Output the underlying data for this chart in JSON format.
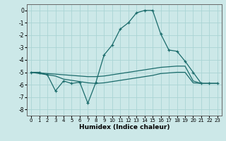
{
  "xlabel": "Humidex (Indice chaleur)",
  "bg_color": "#cce8e8",
  "grid_color": "#aad4d4",
  "line_color": "#1a6b6b",
  "xlim": [
    -0.5,
    23.5
  ],
  "ylim": [
    -8.5,
    0.5
  ],
  "xticks": [
    0,
    1,
    2,
    3,
    4,
    5,
    6,
    7,
    8,
    9,
    10,
    11,
    12,
    13,
    14,
    15,
    16,
    17,
    18,
    19,
    20,
    21,
    22,
    23
  ],
  "yticks": [
    0,
    -1,
    -2,
    -3,
    -4,
    -5,
    -6,
    -7,
    -8
  ],
  "line1_x": [
    0,
    1,
    2,
    3,
    4,
    5,
    6,
    7,
    8,
    9,
    10,
    11,
    12,
    13,
    14,
    15,
    16,
    17,
    18,
    19,
    20,
    21,
    22,
    23
  ],
  "line1_y": [
    -5.0,
    -5.0,
    -5.2,
    -6.5,
    -5.7,
    -5.9,
    -5.8,
    -7.5,
    -5.8,
    -3.6,
    -2.8,
    -1.5,
    -1.0,
    -0.2,
    0.0,
    0.0,
    -1.9,
    -3.2,
    -3.3,
    -4.1,
    -5.0,
    -5.9,
    -5.9,
    -5.9
  ],
  "line2_x": [
    0,
    1,
    2,
    3,
    4,
    5,
    6,
    7,
    8,
    9,
    10,
    11,
    12,
    13,
    14,
    15,
    16,
    17,
    18,
    19,
    20,
    21,
    22,
    23
  ],
  "line2_y": [
    -5.0,
    -5.05,
    -5.1,
    -5.15,
    -5.2,
    -5.25,
    -5.3,
    -5.35,
    -5.35,
    -5.3,
    -5.2,
    -5.1,
    -5.0,
    -4.9,
    -4.8,
    -4.7,
    -4.6,
    -4.55,
    -4.5,
    -4.5,
    -5.7,
    -5.9,
    -5.9,
    -5.9
  ],
  "line3_x": [
    0,
    1,
    2,
    3,
    4,
    5,
    6,
    7,
    8,
    9,
    10,
    11,
    12,
    13,
    14,
    15,
    16,
    17,
    18,
    19,
    20,
    21,
    22,
    23
  ],
  "line3_y": [
    -5.0,
    -5.1,
    -5.2,
    -5.3,
    -5.55,
    -5.65,
    -5.75,
    -5.85,
    -5.9,
    -5.85,
    -5.75,
    -5.65,
    -5.55,
    -5.45,
    -5.35,
    -5.25,
    -5.1,
    -5.05,
    -5.0,
    -5.0,
    -5.85,
    -5.9,
    -5.9,
    -5.9
  ]
}
